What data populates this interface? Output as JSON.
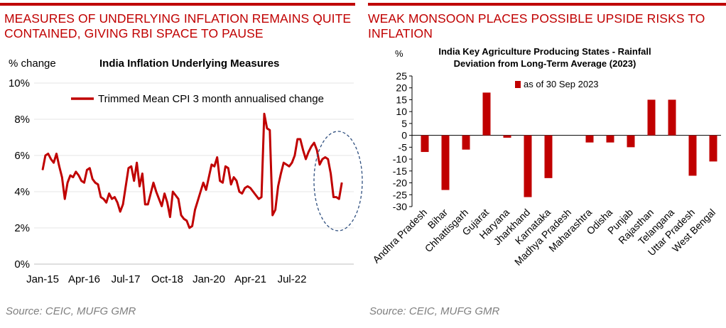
{
  "left": {
    "headline": "MEASURES OF UNDERLYING INFLATION REMAINS QUITE\nCONTAINED, GIVING RBI SPACE TO PAUSE",
    "source": "Source: CEIC, MUFG GMR",
    "chart_data": {
      "type": "line",
      "title": "India Inflation Underlying Measures",
      "ylabel": "% change",
      "xlabel": "",
      "ylim": [
        0,
        10
      ],
      "yticks": [
        "0%",
        "2%",
        "4%",
        "6%",
        "8%",
        "10%"
      ],
      "xticks": [
        "Jan-15",
        "Apr-16",
        "Jul-17",
        "Oct-18",
        "Jan-20",
        "Apr-21",
        "Jul-22"
      ],
      "x_start": "Jan-15",
      "legend": "top",
      "series": [
        {
          "name": "Trimmed Mean CPI 3 month annualised change",
          "color": "#c00000",
          "values": [
            5.2,
            6.0,
            6.1,
            5.8,
            5.6,
            6.1,
            5.4,
            4.8,
            3.6,
            4.5,
            4.9,
            4.8,
            5.1,
            4.9,
            4.6,
            4.5,
            5.2,
            5.3,
            4.7,
            4.5,
            4.4,
            3.7,
            3.6,
            3.4,
            3.9,
            3.6,
            3.7,
            3.4,
            2.9,
            3.3,
            4.3,
            5.3,
            5.4,
            4.6,
            5.6,
            4.3,
            5.0,
            3.3,
            3.3,
            3.9,
            4.5,
            4.0,
            3.6,
            3.2,
            3.9,
            3.4,
            2.6,
            4.0,
            3.8,
            3.6,
            2.7,
            2.5,
            2.4,
            2.0,
            2.1,
            3.0,
            3.5,
            4.0,
            4.5,
            4.1,
            4.8,
            5.5,
            5.4,
            5.9,
            4.6,
            4.5,
            5.4,
            5.3,
            4.4,
            4.8,
            4.6,
            4.0,
            3.9,
            4.2,
            4.3,
            4.2,
            4.0,
            3.8,
            3.6,
            3.7,
            8.3,
            7.5,
            7.4,
            2.7,
            3.0,
            4.3,
            5.0,
            5.6,
            5.5,
            5.4,
            5.6,
            6.0,
            6.9,
            6.9,
            6.3,
            5.8,
            6.2,
            6.5,
            6.7,
            6.3,
            5.5,
            5.8,
            5.9,
            5.8,
            5.0,
            3.7,
            3.7,
            3.6,
            4.5
          ]
        }
      ],
      "annotation": "dashed ellipse highlighting recent readings"
    }
  },
  "right": {
    "headline": "WEAK MONSOON PLACES POSSIBLE UPSIDE RISKS TO\nINFLATION",
    "source": "Source: CEIC, MUFG GMR",
    "chart_data": {
      "type": "bar",
      "title": "India Key Agriculture Producing States - Rainfall Deviation from Long-Term Average (2023)",
      "title_lines": [
        "India Key Agriculture Producing States - Rainfall",
        "Deviation from Long-Term Average (2023)"
      ],
      "ylabel": "%",
      "xlabel": "",
      "ylim": [
        -30,
        25
      ],
      "yticks": [
        "25",
        "20",
        "15",
        "10",
        "5",
        "0",
        "-5",
        "-10",
        "-15",
        "-20",
        "-25",
        "-30"
      ],
      "categories": [
        "Andhra Pradesh",
        "Bihar",
        "Chhattisgarh",
        "Gujarat",
        "Haryana",
        "Jharkhand",
        "Karnataka",
        "Madhya Pradesh",
        "Maharashtra",
        "Odisha",
        "Punjab",
        "Rajasthan",
        "Telangana",
        "Uttar Pradesh",
        "West Bengal"
      ],
      "legend": "top-left",
      "series": [
        {
          "name": "as of 30 Sep 2023",
          "color": "#c00000",
          "values": [
            -7,
            -23,
            -6,
            18,
            -1,
            -26,
            -18,
            0,
            -3,
            -3,
            -5,
            15,
            15,
            -17,
            -11
          ]
        }
      ]
    }
  }
}
